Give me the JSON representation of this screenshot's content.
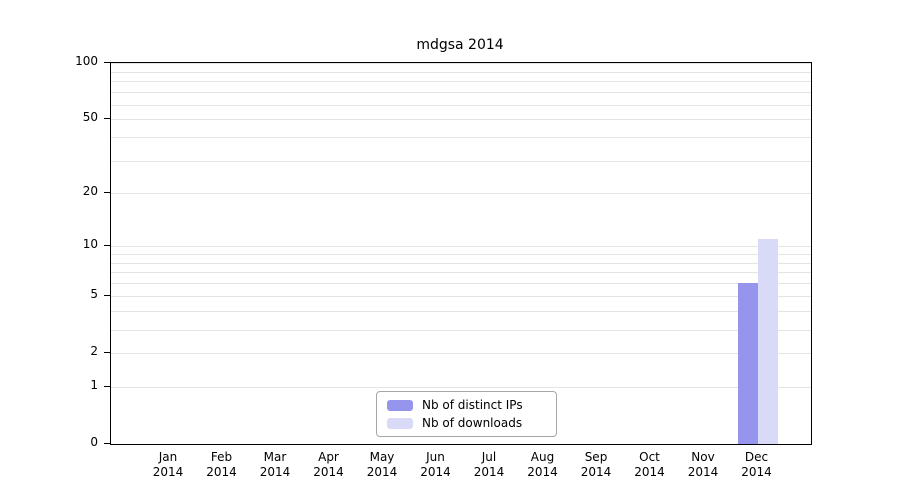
{
  "title": "mdgsa 2014",
  "chart_data": {
    "type": "bar",
    "title": "mdgsa 2014",
    "scale": "log10(1+x)",
    "categories": [
      "Jan",
      "Feb",
      "Mar",
      "Apr",
      "May",
      "Jun",
      "Jul",
      "Aug",
      "Sep",
      "Oct",
      "Nov",
      "Dec"
    ],
    "year": "2014",
    "series": [
      {
        "name": "Nb of distinct IPs",
        "color": "#9595ee",
        "values": [
          0,
          0,
          0,
          0,
          0,
          0,
          0,
          0,
          0,
          0,
          0,
          6
        ]
      },
      {
        "name": "Nb of downloads",
        "color": "#d9d9f8",
        "values": [
          0,
          0,
          0,
          0,
          0,
          0,
          0,
          0,
          0,
          0,
          0,
          11
        ]
      }
    ],
    "y_ticks": [
      100,
      50,
      20,
      10,
      5,
      2,
      1,
      0
    ],
    "gridline_values": [
      1,
      2,
      3,
      4,
      5,
      6,
      7,
      8,
      9,
      10,
      20,
      30,
      40,
      50,
      60,
      70,
      80,
      90,
      100
    ],
    "ylim": [
      0,
      100
    ],
    "grid": true,
    "legend_position": "bottom-center",
    "xlabel": "",
    "ylabel": ""
  }
}
